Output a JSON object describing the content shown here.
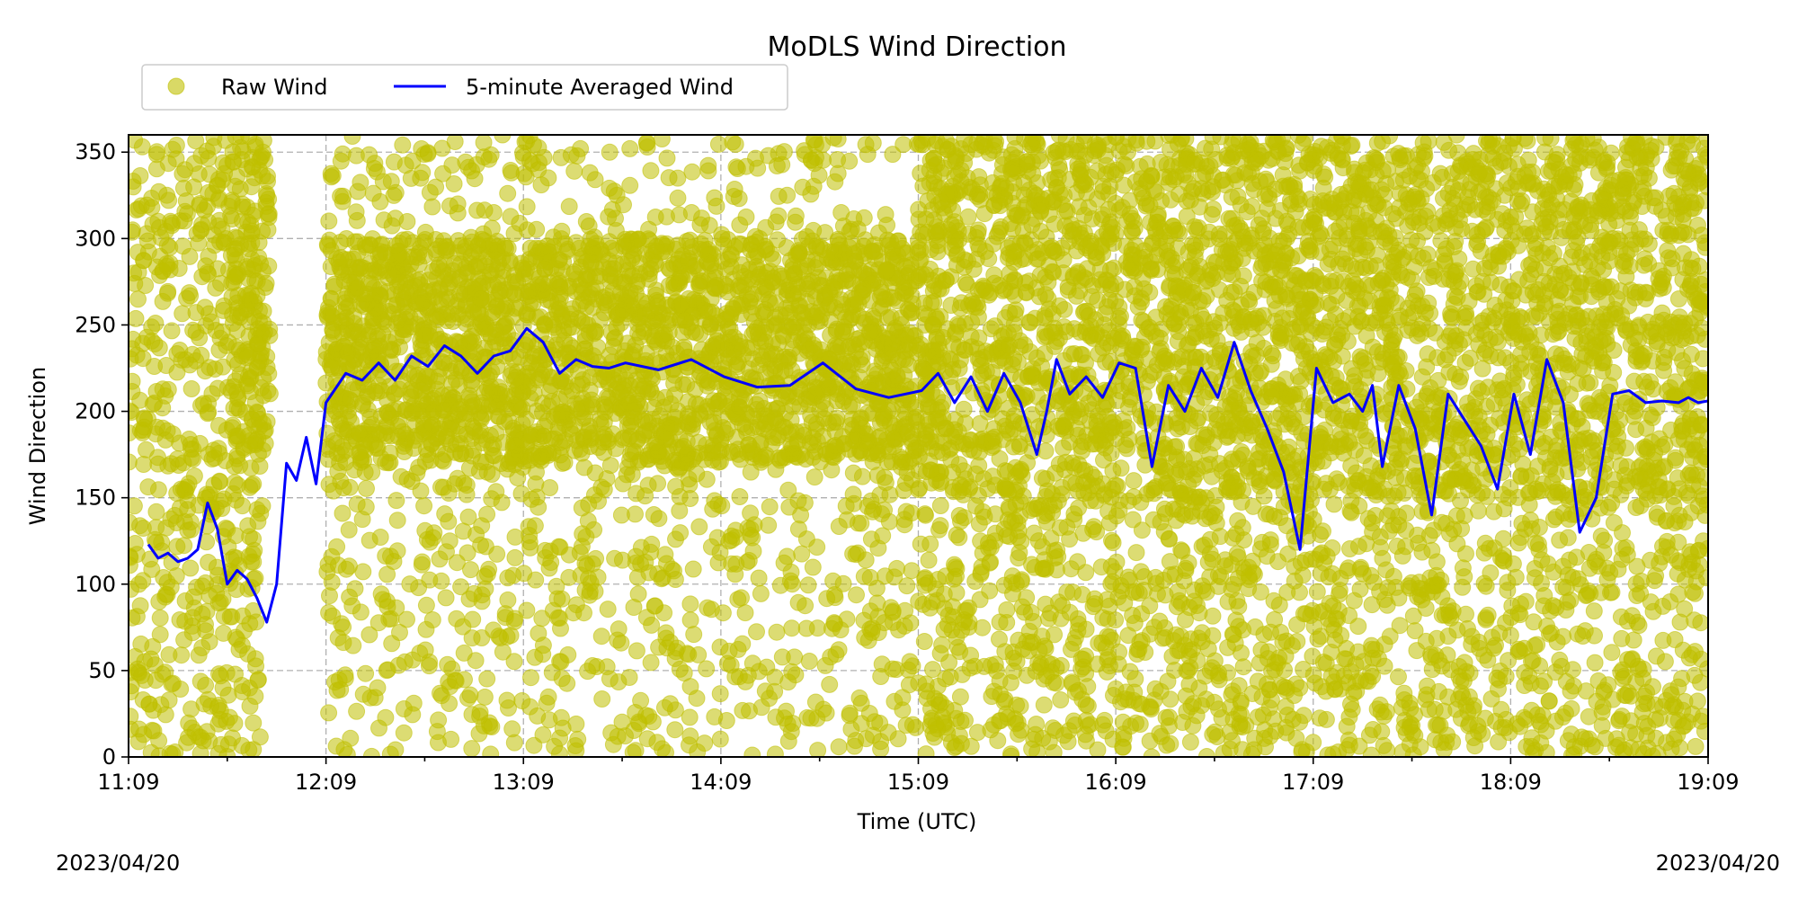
{
  "chart_data": {
    "type": "scatter",
    "title": "MoDLS Wind Direction",
    "xlabel": "Time (UTC)",
    "ylabel": "Wind Direction",
    "date_left": "2023/04/20",
    "date_right": "2023/04/20",
    "x_ticks": [
      "11:09",
      "12:09",
      "13:09",
      "14:09",
      "15:09",
      "16:09",
      "17:09",
      "18:09",
      "19:09"
    ],
    "x_minor_ticks": [
      "11:39",
      "12:39",
      "13:39",
      "14:39",
      "15:39",
      "16:39",
      "17:39",
      "18:39"
    ],
    "xlim": [
      "11:09",
      "19:09"
    ],
    "y_ticks": [
      0,
      50,
      100,
      150,
      200,
      250,
      300,
      350
    ],
    "ylim": [
      0,
      360
    ],
    "grid": true,
    "legend": {
      "placement": "top-left, above axes",
      "entries": [
        {
          "label": "Raw Wind",
          "marker": "circle",
          "color": "#bfbf00"
        },
        {
          "label": "5-minute Averaged Wind",
          "marker": "line",
          "color": "#0000ff"
        }
      ]
    },
    "series": [
      {
        "name": "5-minute Averaged Wind",
        "kind": "line",
        "color": "#0000ff",
        "x": [
          "11:15",
          "11:18",
          "11:21",
          "11:24",
          "11:27",
          "11:30",
          "11:33",
          "11:36",
          "11:39",
          "11:42",
          "11:45",
          "11:48",
          "11:51",
          "11:54",
          "11:57",
          "12:00",
          "12:03",
          "12:06",
          "12:09",
          "12:15",
          "12:20",
          "12:25",
          "12:30",
          "12:35",
          "12:40",
          "12:45",
          "12:50",
          "12:55",
          "13:00",
          "13:05",
          "13:10",
          "13:15",
          "13:20",
          "13:25",
          "13:30",
          "13:35",
          "13:40",
          "13:50",
          "14:00",
          "14:10",
          "14:20",
          "14:30",
          "14:40",
          "14:50",
          "15:00",
          "15:10",
          "15:15",
          "15:20",
          "15:25",
          "15:30",
          "15:35",
          "15:40",
          "15:45",
          "15:48",
          "15:51",
          "15:55",
          "16:00",
          "16:05",
          "16:10",
          "16:15",
          "16:20",
          "16:25",
          "16:30",
          "16:35",
          "16:40",
          "16:45",
          "16:50",
          "16:55",
          "17:00",
          "17:05",
          "17:10",
          "17:15",
          "17:20",
          "17:24",
          "17:27",
          "17:30",
          "17:35",
          "17:40",
          "17:45",
          "17:50",
          "17:55",
          "18:00",
          "18:05",
          "18:10",
          "18:15",
          "18:20",
          "18:25",
          "18:30",
          "18:35",
          "18:40",
          "18:45",
          "18:50",
          "18:55",
          "19:00",
          "19:03",
          "19:06",
          "19:09"
        ],
        "y": [
          123,
          115,
          118,
          113,
          115,
          120,
          147,
          132,
          100,
          108,
          103,
          92,
          78,
          100,
          170,
          160,
          185,
          158,
          205,
          222,
          218,
          228,
          218,
          232,
          226,
          238,
          232,
          222,
          232,
          235,
          248,
          240,
          222,
          230,
          226,
          225,
          228,
          224,
          230,
          220,
          214,
          215,
          228,
          213,
          208,
          212,
          222,
          205,
          220,
          200,
          222,
          205,
          175,
          200,
          230,
          210,
          220,
          208,
          228,
          225,
          168,
          215,
          200,
          225,
          208,
          240,
          212,
          190,
          165,
          120,
          225,
          205,
          210,
          200,
          215,
          168,
          215,
          190,
          140,
          210,
          195,
          180,
          155,
          210,
          175,
          230,
          205,
          130,
          150,
          210,
          212,
          205,
          206,
          205,
          208,
          205,
          206
        ]
      },
      {
        "name": "Raw Wind",
        "kind": "scatter",
        "color": "#bfbf00",
        "density_bands": [
          {
            "from": "11:09",
            "to": "11:50",
            "y_ranges": [
              [
                0,
                360
              ]
            ],
            "density": 2.2
          },
          {
            "from": "11:40",
            "to": "11:52",
            "y_ranges": [
              [
                180,
                360
              ]
            ],
            "density": 4
          },
          {
            "from": "12:09",
            "to": "15:09",
            "y_ranges": [
              [
                170,
                300
              ]
            ],
            "density": 5
          },
          {
            "from": "12:09",
            "to": "15:09",
            "y_ranges": [
              [
                0,
                360
              ]
            ],
            "density": 1.2
          },
          {
            "from": "15:09",
            "to": "19:09",
            "y_ranges": [
              [
                150,
                360
              ]
            ],
            "density": 4
          },
          {
            "from": "15:09",
            "to": "19:09",
            "y_ranges": [
              [
                0,
                150
              ]
            ],
            "density": 2.2
          }
        ]
      }
    ]
  }
}
